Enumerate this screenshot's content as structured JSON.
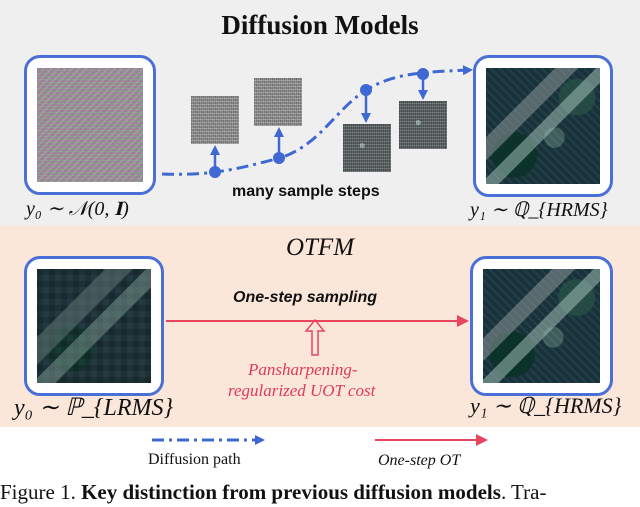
{
  "top_panel": {
    "title": "Diffusion Models",
    "source_label": "y₀ ∼ 𝒩(0, 𝐈)",
    "target_label": "y₁ ∼ ℚ_{HRMS}",
    "steps_label": "many sample steps"
  },
  "bottom_panel": {
    "title": "OTFM",
    "source_label": "y₀ ∼ ℙ_{LRMS}",
    "target_label": "y₁ ∼ ℚ_{HRMS}",
    "sampling_label": "One-step sampling",
    "cost_label_line1": "Pansharpening-",
    "cost_label_line2": "regularized UOT cost"
  },
  "legend": {
    "diffusion_label": "Diffusion path",
    "onestep_label": "One-step OT"
  },
  "caption": {
    "prefix": "Figure 1. ",
    "bold": "Key distinction from previous diffusion models",
    "suffix": ". Tra-"
  },
  "colors": {
    "frame_blue": "#4a6fd6",
    "path_blue": "#3f68d2",
    "arrow_red": "#e8465f",
    "top_bg": "#efefef",
    "bottom_bg": "#fbe6da"
  }
}
